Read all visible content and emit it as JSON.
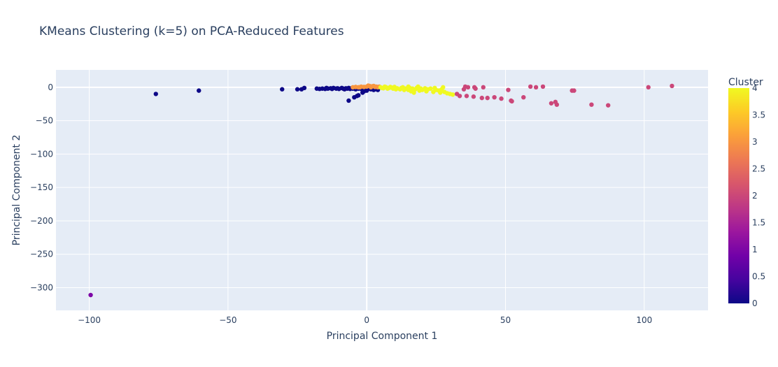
{
  "chart_data": {
    "type": "scatter",
    "title": "KMeans Clustering (k=5) on PCA-Reduced Features",
    "xlabel": "Principal Component 1",
    "ylabel": "Principal Component 2",
    "xlim": [
      -112,
      123
    ],
    "ylim": [
      -334,
      26
    ],
    "x_ticks": [
      -100,
      -50,
      0,
      50,
      100
    ],
    "x_tick_labels": [
      "−100",
      "−50",
      "0",
      "50",
      "100"
    ],
    "y_ticks": [
      0,
      -50,
      -100,
      -150,
      -200,
      -250,
      -300
    ],
    "y_tick_labels": [
      "0",
      "−50",
      "−100",
      "−150",
      "−200",
      "−250",
      "−300"
    ],
    "grid": true,
    "colorbar": {
      "title": "Cluster",
      "min": 0,
      "max": 4,
      "ticks": [
        0,
        0.5,
        1,
        1.5,
        2,
        2.5,
        3,
        3.5,
        4
      ],
      "tick_labels": [
        "0",
        "0.5",
        "1",
        "1.5",
        "2",
        "2.5",
        "3",
        "3.5",
        "4"
      ],
      "colorscale": [
        "#0d0887",
        "#46039f",
        "#7201a8",
        "#9c179e",
        "#bd3786",
        "#d8576b",
        "#ed7953",
        "#fb9f3a",
        "#fdca26",
        "#f0f921"
      ]
    },
    "points": [
      [
        -99.5,
        -311,
        1
      ],
      [
        -76,
        -10,
        0
      ],
      [
        -60.5,
        -5,
        0
      ],
      [
        -30.5,
        -3,
        0
      ],
      [
        -25,
        -3,
        0
      ],
      [
        -23.5,
        -3,
        0
      ],
      [
        -22.5,
        -1,
        0
      ],
      [
        -18,
        -2,
        0
      ],
      [
        -17,
        -2.5,
        0
      ],
      [
        -16,
        -2,
        0
      ],
      [
        -15,
        -2.5,
        0
      ],
      [
        -14.5,
        -1,
        0
      ],
      [
        -14,
        -2,
        0
      ],
      [
        -13,
        -1.5,
        0
      ],
      [
        -12.5,
        -2.5,
        0
      ],
      [
        -12,
        -1,
        0
      ],
      [
        -11,
        -2,
        0
      ],
      [
        -10.5,
        -1.5,
        0
      ],
      [
        -10,
        -2.5,
        0
      ],
      [
        -9,
        -1,
        0
      ],
      [
        -8.5,
        -2,
        0
      ],
      [
        -8,
        -3,
        0
      ],
      [
        -7.5,
        -1.5,
        0
      ],
      [
        -7,
        -2,
        0
      ],
      [
        -6.5,
        -1,
        0
      ],
      [
        -6,
        -2.5,
        0
      ],
      [
        -5.5,
        -1.5,
        0
      ],
      [
        -5,
        -2,
        0
      ],
      [
        -4.5,
        -0.5,
        0
      ],
      [
        -4,
        -3,
        0
      ],
      [
        -3.5,
        -1.5,
        0
      ],
      [
        -3,
        -2,
        0
      ],
      [
        -2.5,
        -1,
        0
      ],
      [
        -2,
        -2.5,
        0
      ],
      [
        -1.5,
        -1.5,
        0
      ],
      [
        -1,
        -2,
        0
      ],
      [
        -0.5,
        -3,
        0
      ],
      [
        0,
        -1.5,
        0
      ],
      [
        0.5,
        -2.5,
        0
      ],
      [
        1,
        -1,
        0
      ],
      [
        1.5,
        -3,
        0
      ],
      [
        2,
        -2,
        0
      ],
      [
        2.5,
        -4,
        0
      ],
      [
        3,
        -2.5,
        0
      ],
      [
        3.5,
        -3,
        0
      ],
      [
        4,
        -4,
        0
      ],
      [
        -1.5,
        -4,
        0
      ],
      [
        0,
        -5,
        0
      ],
      [
        -6.5,
        -20,
        0
      ],
      [
        -4.5,
        -15,
        0
      ],
      [
        -3.5,
        -13,
        0
      ],
      [
        -3,
        -12,
        0
      ],
      [
        -1.5,
        -8,
        0
      ],
      [
        -1,
        -6,
        0
      ],
      [
        -0.5,
        -4,
        0
      ],
      [
        -5,
        0,
        3
      ],
      [
        -4,
        0.5,
        3
      ],
      [
        -3,
        0,
        3
      ],
      [
        -2,
        1,
        3
      ],
      [
        -1,
        0.5,
        3
      ],
      [
        0,
        1,
        3
      ],
      [
        1,
        2,
        3
      ],
      [
        1.5,
        0,
        3
      ],
      [
        2,
        1.5,
        3
      ],
      [
        2.5,
        2,
        3
      ],
      [
        3,
        0.5,
        3
      ],
      [
        3.5,
        1,
        3
      ],
      [
        4,
        0,
        3
      ],
      [
        4.5,
        1,
        3
      ],
      [
        0.5,
        2.5,
        3
      ],
      [
        -2.5,
        0,
        3
      ],
      [
        5,
        0,
        4
      ],
      [
        5.5,
        -1,
        4
      ],
      [
        6,
        -1.5,
        4
      ],
      [
        7,
        0,
        4
      ],
      [
        7.5,
        -2,
        4
      ],
      [
        8,
        -1,
        4
      ],
      [
        9,
        -0.5,
        4
      ],
      [
        9.5,
        -2,
        4
      ],
      [
        10,
        0.5,
        4
      ],
      [
        11,
        -1.5,
        4
      ],
      [
        12,
        -3,
        4
      ],
      [
        12.5,
        -1,
        4
      ],
      [
        13,
        0,
        4
      ],
      [
        14,
        -2,
        4
      ],
      [
        15,
        -4,
        4
      ],
      [
        15.5,
        -1,
        4
      ],
      [
        16,
        -6,
        4
      ],
      [
        16.5,
        -2,
        4
      ],
      [
        17,
        -8,
        4
      ],
      [
        17.5,
        -3,
        4
      ],
      [
        18,
        -1,
        4
      ],
      [
        19,
        -5,
        4
      ],
      [
        19.5,
        -2,
        4
      ],
      [
        20,
        -4,
        4
      ],
      [
        21,
        -1.5,
        4
      ],
      [
        21.5,
        -6,
        4
      ],
      [
        22,
        -3,
        4
      ],
      [
        23,
        -2,
        4
      ],
      [
        24,
        -7,
        4
      ],
      [
        25,
        -4,
        4
      ],
      [
        26,
        -5,
        4
      ],
      [
        26.5,
        -8,
        4
      ],
      [
        27,
        -3,
        4
      ],
      [
        28,
        -7,
        4
      ],
      [
        29,
        -9,
        4
      ],
      [
        30,
        -10,
        4
      ],
      [
        31,
        -11,
        4
      ],
      [
        6.5,
        1,
        4
      ],
      [
        8.5,
        0.5,
        4
      ],
      [
        10.5,
        -3,
        4
      ],
      [
        13.5,
        -4,
        4
      ],
      [
        18.5,
        1,
        4
      ],
      [
        24.5,
        -1,
        4
      ],
      [
        27.5,
        0,
        4
      ],
      [
        15,
        1,
        4
      ],
      [
        32.5,
        -10,
        2
      ],
      [
        33.5,
        -13,
        2
      ],
      [
        35,
        -3,
        2
      ],
      [
        35.5,
        1,
        2
      ],
      [
        36,
        -13,
        2
      ],
      [
        36.5,
        0,
        2
      ],
      [
        38.5,
        -14,
        2
      ],
      [
        38.8,
        0,
        2
      ],
      [
        39.2,
        -2,
        2
      ],
      [
        41.5,
        -16,
        2
      ],
      [
        42,
        0,
        2
      ],
      [
        43.5,
        -16,
        2
      ],
      [
        46,
        -15,
        2
      ],
      [
        48.5,
        -17,
        2
      ],
      [
        51,
        -4,
        2
      ],
      [
        52,
        -20,
        2
      ],
      [
        52.3,
        -21,
        2
      ],
      [
        56.5,
        -15,
        2
      ],
      [
        59,
        1,
        2
      ],
      [
        61,
        0,
        2
      ],
      [
        63.5,
        1,
        2
      ],
      [
        66.5,
        -24,
        2
      ],
      [
        68,
        -22,
        2
      ],
      [
        68.5,
        -26,
        2
      ],
      [
        74,
        -5,
        2
      ],
      [
        74.7,
        -5,
        2
      ],
      [
        81,
        -26,
        2
      ],
      [
        87,
        -27,
        2
      ],
      [
        101.5,
        0,
        2
      ],
      [
        110,
        2,
        2
      ]
    ]
  }
}
